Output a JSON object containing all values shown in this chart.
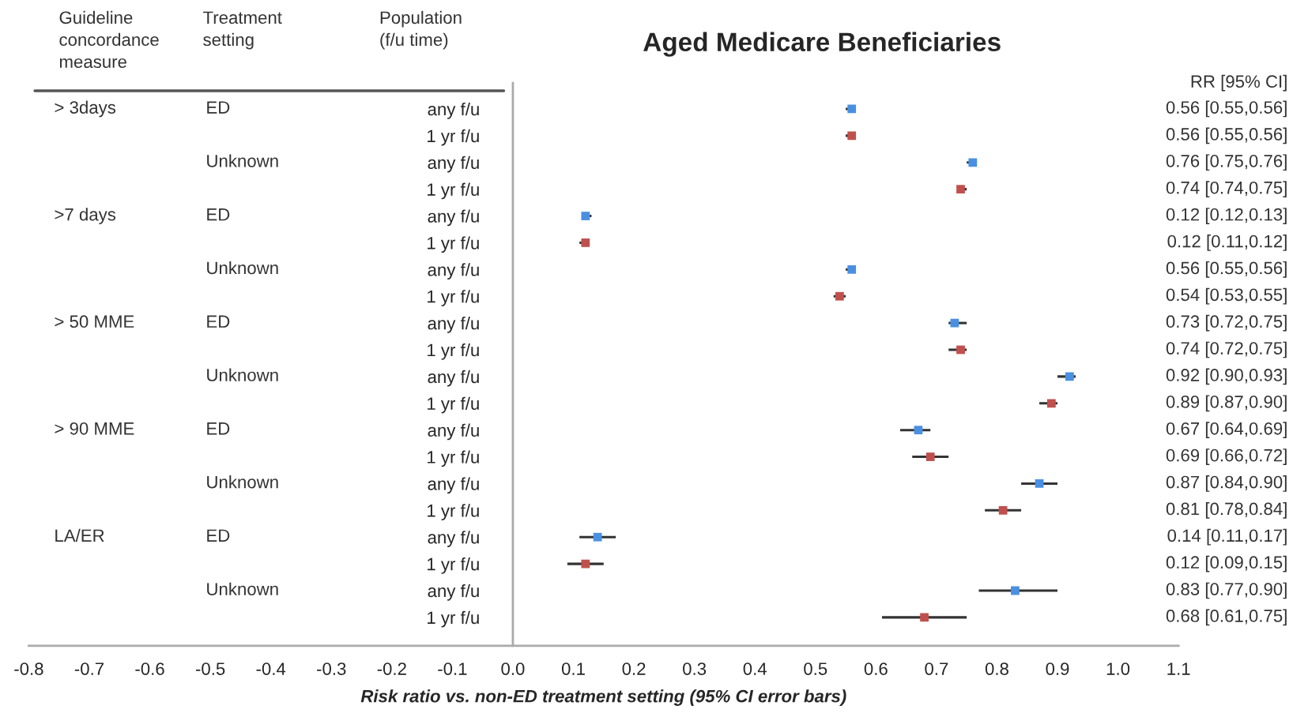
{
  "chart_data": {
    "type": "scatter",
    "orientation": "horizontal",
    "title": "Aged Medicare Beneficiaries",
    "xlabel": "Risk ratio vs. non-ED treatment setting (95% CI error bars)",
    "categories": [
      "any f/u",
      "1 yr f/u",
      "any f/u",
      "1 yr f/u",
      "any f/u",
      "1 yr f/u",
      "any f/u",
      "1 yr f/u",
      "any f/u",
      "1 yr f/u",
      "any f/u",
      "1 yr f/u",
      "any f/u",
      "1 yr f/u",
      "any f/u",
      "1 yr f/u",
      "any f/u",
      "1 yr f/u",
      "any f/u",
      "1 yr f/u"
    ],
    "series": [
      {
        "color": "#4a90e2",
        "values": [
          0.56,
          null,
          0.76,
          null,
          0.12,
          null,
          0.56,
          null,
          0.73,
          null,
          0.92,
          null,
          0.67,
          null,
          0.87,
          null,
          0.14,
          null,
          0.83,
          null
        ],
        "errors": [
          [
            0.55,
            0.56
          ],
          null,
          [
            0.75,
            0.76
          ],
          null,
          [
            0.12,
            0.13
          ],
          null,
          [
            0.55,
            0.56
          ],
          null,
          [
            0.72,
            0.75
          ],
          null,
          [
            0.9,
            0.93
          ],
          null,
          [
            0.64,
            0.69
          ],
          null,
          [
            0.84,
            0.9
          ],
          null,
          [
            0.11,
            0.17
          ],
          null,
          [
            0.77,
            0.9
          ],
          null
        ]
      },
      {
        "color": "#c0504d",
        "values": [
          null,
          0.56,
          null,
          0.74,
          null,
          0.12,
          null,
          0.54,
          null,
          0.74,
          null,
          0.89,
          null,
          0.69,
          null,
          0.81,
          null,
          0.12,
          null,
          0.68
        ],
        "errors": [
          null,
          [
            0.55,
            0.56
          ],
          null,
          [
            0.74,
            0.75
          ],
          null,
          [
            0.11,
            0.12
          ],
          null,
          [
            0.53,
            0.55
          ],
          null,
          [
            0.72,
            0.75
          ],
          null,
          [
            0.87,
            0.9
          ],
          null,
          [
            0.66,
            0.72
          ],
          null,
          [
            0.78,
            0.84
          ],
          null,
          [
            0.09,
            0.15
          ],
          null,
          [
            0.61,
            0.75
          ]
        ]
      }
    ],
    "xlim": [
      -0.8,
      1.1
    ],
    "xticks": [
      -0.8,
      -0.7,
      -0.6,
      -0.5,
      -0.4,
      -0.3,
      -0.2,
      -0.1,
      {
        "value": 0,
        "label": "0.0"
      },
      0.1,
      0.2,
      0.3,
      0.4,
      0.5,
      0.6,
      0.7,
      0.8,
      0.9,
      {
        "value": 1,
        "label": "1.0"
      },
      1.1
    ],
    "marker": "square",
    "grid": false,
    "legend": false,
    "annotations": [
      "Guideline\nconcordance\nmeasure",
      "Treatment\nsetting",
      "Population\n(f/u time)",
      "RR [95% CI]",
      "> 3days",
      ">7 days",
      "> 50 MME",
      "> 90 MME",
      "LA/ER",
      "ED",
      "Unknown",
      "ED",
      "Unknown",
      "ED",
      "Unknown",
      "ED",
      "Unknown",
      "ED",
      "Unknown",
      "0.56 [0.55,0.56]",
      "0.56 [0.55,0.56]",
      "0.76 [0.75,0.76]",
      "0.74 [0.74,0.75]",
      "0.12 [0.12,0.13]",
      "0.12 [0.11,0.12]",
      "0.56 [0.55,0.56]",
      "0.54 [0.53,0.55]",
      "0.73 [0.72,0.75]",
      "0.74 [0.72,0.75]",
      "0.92 [0.90,0.93]",
      "0.89 [0.87,0.90]",
      "0.67 [0.64,0.69]",
      "0.69 [0.66,0.72]",
      "0.87 [0.84,0.90]",
      "0.81 [0.78,0.84]",
      "0.14 [0.11,0.17]",
      "0.12 [0.09,0.15]",
      "0.83 [0.77,0.90]",
      "0.68 [0.61,0.75]"
    ]
  }
}
